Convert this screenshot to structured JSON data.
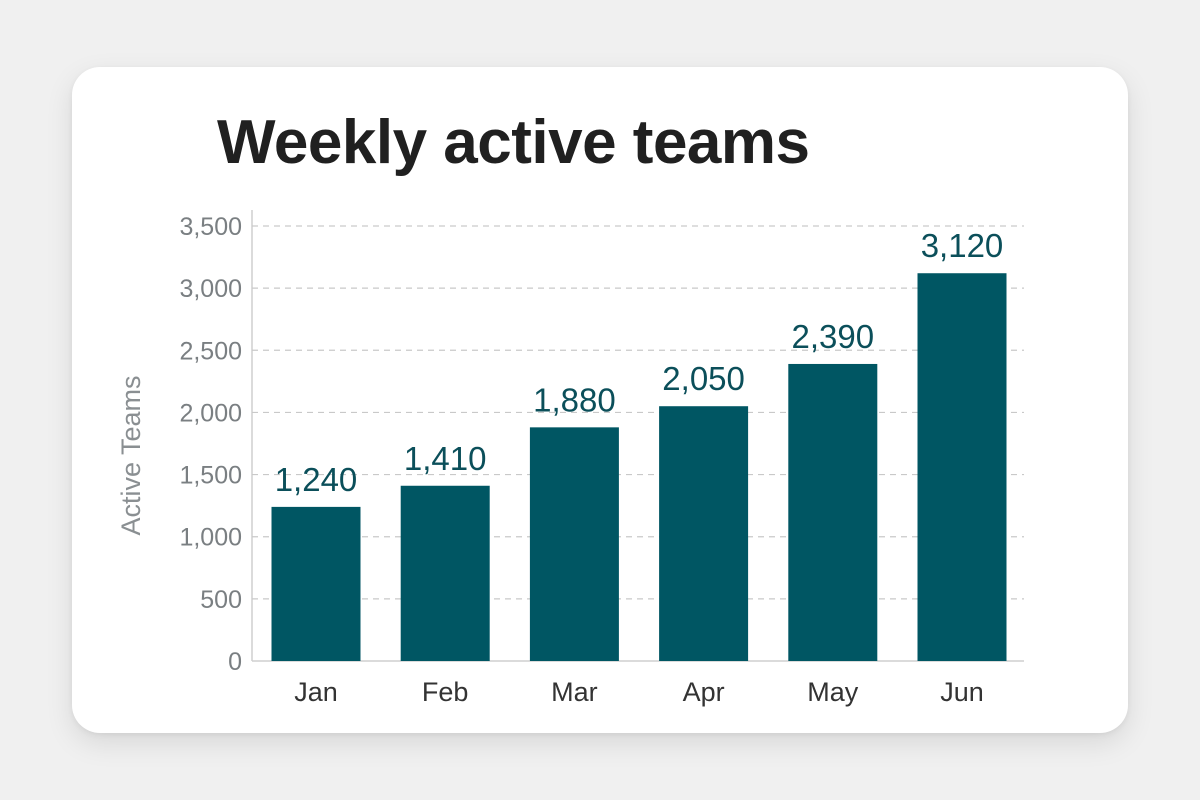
{
  "chart_data": {
    "type": "bar",
    "title": "Weekly active teams",
    "xlabel": "",
    "ylabel": "Active Teams",
    "categories": [
      "Jan",
      "Feb",
      "Mar",
      "Apr",
      "May",
      "Jun"
    ],
    "values": [
      1240,
      1410,
      1880,
      2050,
      2390,
      3120
    ],
    "value_labels": [
      "1,240",
      "1,410",
      "1,880",
      "2,050",
      "2,390",
      "3,120"
    ],
    "ylim": [
      0,
      3500
    ],
    "yticks": [
      0,
      500,
      1000,
      1500,
      2000,
      2500,
      3000,
      3500
    ],
    "ytick_labels": [
      "0",
      "500",
      "1,000",
      "1,500",
      "2,000",
      "2,500",
      "3,000",
      "3,500"
    ],
    "grid": true,
    "legend": "none",
    "colors": {
      "bar": "#005663",
      "value_label": "#0b4f5a",
      "tick_label": "#7a7f82",
      "category_label": "#333333",
      "axis_title": "#8a8f92",
      "grid": "#c9c9c9",
      "axis": "#cfcfcf"
    }
  }
}
